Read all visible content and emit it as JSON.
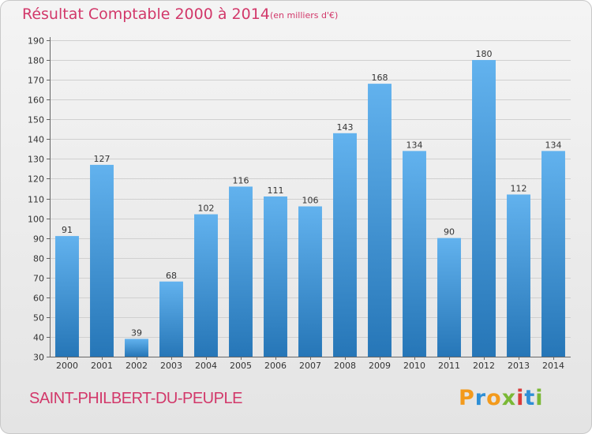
{
  "header": {
    "title": "Résultat Comptable 2000 à 2014",
    "subtitle": "(en milliers d'€)"
  },
  "footer": {
    "commune": "SAINT-PHILBERT-DU-PEUPLE",
    "logo": "Proxiti"
  },
  "colors": {
    "title": "#d2386a",
    "bar_top": "#62b2ee",
    "bar_bottom": "#2676b7",
    "logo_letters": [
      "#f39a1c",
      "#2e8fd6",
      "#f39a1c",
      "#7ab835",
      "#d93b3b",
      "#2e8fd6",
      "#7ab835"
    ]
  },
  "chart_data": {
    "type": "bar",
    "title": "Résultat Comptable 2000 à 2014",
    "subtitle": "(en milliers d'€)",
    "categories": [
      "2000",
      "2001",
      "2002",
      "2003",
      "2004",
      "2005",
      "2006",
      "2007",
      "2008",
      "2009",
      "2010",
      "2011",
      "2012",
      "2013",
      "2014"
    ],
    "values": [
      91,
      127,
      39,
      68,
      102,
      116,
      111,
      106,
      143,
      168,
      134,
      90,
      180,
      112,
      134
    ],
    "ylim": [
      30,
      190
    ],
    "yticks": [
      30,
      40,
      50,
      60,
      70,
      80,
      90,
      100,
      110,
      120,
      130,
      140,
      150,
      160,
      170,
      180,
      190
    ],
    "grid": true,
    "data_labels": true
  }
}
